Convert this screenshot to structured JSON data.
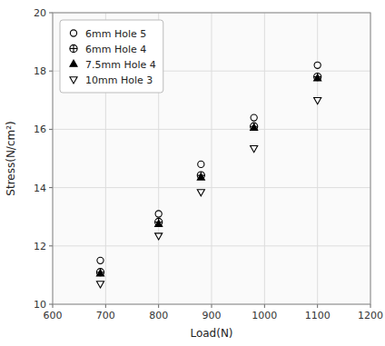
{
  "chart_data": {
    "type": "scatter",
    "xlabel": "Load(N)",
    "ylabel": "Stress(N/cm²)",
    "xlim": [
      600,
      1200
    ],
    "ylim": [
      10,
      20
    ],
    "xticks": [
      600,
      700,
      800,
      900,
      1000,
      1100,
      1200
    ],
    "yticks": [
      10,
      12,
      14,
      16,
      18,
      20
    ],
    "grid": true,
    "legend": "upper left",
    "series": [
      {
        "name": "6mm Hole 5",
        "color": "black",
        "marker": "circle-open",
        "x": [
          690,
          800,
          880,
          980,
          1100
        ],
        "values": [
          11.5,
          13.1,
          14.8,
          16.4,
          18.2
        ]
      },
      {
        "name": "6mm Hole 4",
        "color": "black",
        "marker": "circle-plus",
        "x": [
          690,
          800,
          880,
          980,
          1100
        ],
        "values": [
          11.1,
          12.82,
          14.42,
          16.1,
          17.8
        ]
      },
      {
        "name": "7.5mm Hole 4",
        "color": "black",
        "marker": "triangle-up",
        "x": [
          690,
          800,
          880,
          980,
          1100
        ],
        "values": [
          11.05,
          12.75,
          14.35,
          16.05,
          17.75
        ]
      },
      {
        "name": "10mm Hole 3",
        "color": "black",
        "marker": "triangle-down-open",
        "x": [
          690,
          800,
          880,
          980,
          1100
        ],
        "values": [
          10.7,
          12.35,
          13.85,
          15.35,
          17.0
        ]
      }
    ]
  }
}
